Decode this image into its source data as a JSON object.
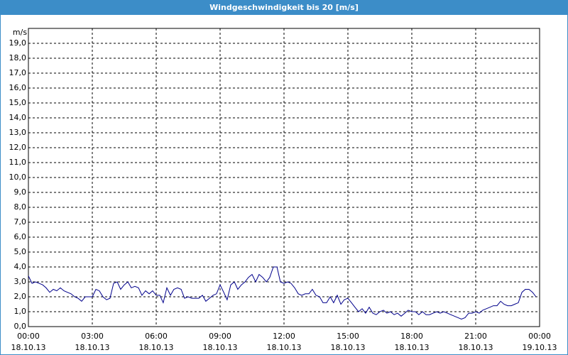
{
  "chart_data": {
    "type": "line",
    "title": "Windgeschwindigkeit bis 20 [m/s]",
    "ylabel": "m/s",
    "color": "#00008b",
    "grid": true,
    "xlim": [
      0,
      24
    ],
    "xticks": [
      {
        "value": 0,
        "label": "00:00"
      },
      {
        "value": 3,
        "label": "03:00"
      },
      {
        "value": 6,
        "label": "06:00"
      },
      {
        "value": 9,
        "label": "09:00"
      },
      {
        "value": 12,
        "label": "12:00"
      },
      {
        "value": 15,
        "label": "15:00"
      },
      {
        "value": 18,
        "label": "18:00"
      },
      {
        "value": 21,
        "label": "21:00"
      },
      {
        "value": 24,
        "label": "00:00"
      }
    ],
    "xtick_dates": [
      "18.10.13",
      "18.10.13",
      "18.10.13",
      "18.10.13",
      "18.10.13",
      "18.10.13",
      "18.10.13",
      "18.10.13",
      "19.10.13"
    ],
    "ylim": [
      0,
      20
    ],
    "yticks": [
      {
        "value": 0,
        "label": "0,0"
      },
      {
        "value": 1,
        "label": "1,0"
      },
      {
        "value": 2,
        "label": "2,0"
      },
      {
        "value": 3,
        "label": "3,0"
      },
      {
        "value": 4,
        "label": "4,0"
      },
      {
        "value": 5,
        "label": "5,0"
      },
      {
        "value": 6,
        "label": "6,0"
      },
      {
        "value": 7,
        "label": "7,0"
      },
      {
        "value": 8,
        "label": "8,0"
      },
      {
        "value": 9,
        "label": "9,0"
      },
      {
        "value": 10,
        "label": "10,0"
      },
      {
        "value": 11,
        "label": "11,0"
      },
      {
        "value": 12,
        "label": "12,0"
      },
      {
        "value": 13,
        "label": "13,0"
      },
      {
        "value": 14,
        "label": "14,0"
      },
      {
        "value": 15,
        "label": "15,0"
      },
      {
        "value": 16,
        "label": "16,0"
      },
      {
        "value": 17,
        "label": "17,0"
      },
      {
        "value": 18,
        "label": "18,0"
      },
      {
        "value": 19,
        "label": "19,0"
      }
    ],
    "x": [
      0,
      0.17,
      0.33,
      0.5,
      0.67,
      0.83,
      1,
      1.17,
      1.33,
      1.5,
      1.67,
      1.83,
      2,
      2.17,
      2.33,
      2.5,
      2.67,
      2.83,
      3,
      3.17,
      3.33,
      3.5,
      3.67,
      3.83,
      4,
      4.17,
      4.33,
      4.5,
      4.67,
      4.83,
      5,
      5.17,
      5.33,
      5.5,
      5.67,
      5.83,
      6,
      6.17,
      6.33,
      6.5,
      6.67,
      6.83,
      7,
      7.17,
      7.33,
      7.5,
      7.67,
      7.83,
      8,
      8.17,
      8.33,
      8.5,
      8.67,
      8.83,
      9,
      9.17,
      9.33,
      9.5,
      9.67,
      9.83,
      10,
      10.17,
      10.33,
      10.5,
      10.67,
      10.83,
      11,
      11.17,
      11.33,
      11.5,
      11.67,
      11.83,
      12,
      12.17,
      12.33,
      12.5,
      12.67,
      12.83,
      13,
      13.17,
      13.33,
      13.5,
      13.67,
      13.83,
      14,
      14.17,
      14.33,
      14.5,
      14.67,
      14.83,
      15,
      15.17,
      15.33,
      15.5,
      15.67,
      15.83,
      16,
      16.17,
      16.33,
      16.5,
      16.67,
      16.83,
      17,
      17.17,
      17.33,
      17.5,
      17.67,
      17.83,
      18,
      18.17,
      18.33,
      18.5,
      18.67,
      18.83,
      19,
      19.17,
      19.33,
      19.5,
      19.67,
      19.83,
      20,
      20.17,
      20.33,
      20.5,
      20.67,
      20.83,
      21,
      21.17,
      21.33,
      21.5,
      21.67,
      21.83,
      22,
      22.17,
      22.33,
      22.5,
      22.67,
      22.83,
      23,
      23.17,
      23.33,
      23.5,
      23.67,
      23.83
    ],
    "values": [
      3.4,
      2.9,
      3.0,
      2.9,
      2.8,
      2.6,
      2.3,
      2.5,
      2.4,
      2.6,
      2.4,
      2.3,
      2.2,
      2.0,
      1.9,
      1.7,
      2.0,
      2.0,
      2.0,
      2.5,
      2.4,
      2.0,
      1.8,
      1.9,
      2.9,
      3.0,
      2.5,
      2.8,
      3.0,
      2.6,
      2.7,
      2.6,
      2.1,
      2.4,
      2.2,
      2.4,
      2.1,
      2.1,
      1.6,
      2.6,
      2.1,
      2.5,
      2.6,
      2.5,
      1.9,
      2.0,
      1.9,
      1.9,
      1.9,
      2.1,
      1.7,
      1.9,
      2.1,
      2.2,
      2.8,
      2.3,
      1.8,
      2.8,
      3.0,
      2.5,
      2.8,
      3.0,
      3.3,
      3.5,
      3.0,
      3.5,
      3.3,
      3.0,
      3.3,
      4.0,
      4.0,
      3.0,
      2.9,
      3.0,
      2.9,
      2.6,
      2.2,
      2.1,
      2.2,
      2.2,
      2.5,
      2.1,
      2.0,
      1.6,
      1.6,
      2.0,
      1.6,
      2.1,
      1.5,
      1.8,
      1.9,
      1.6,
      1.3,
      1.0,
      1.2,
      0.9,
      1.3,
      0.9,
      0.8,
      1.0,
      1.1,
      0.9,
      1.0,
      0.8,
      0.9,
      0.7,
      0.9,
      1.1,
      1.0,
      1.0,
      0.8,
      1.0,
      0.8,
      0.8,
      0.9,
      1.0,
      0.9,
      1.0,
      0.9,
      0.8,
      0.7,
      0.6,
      0.5,
      0.6,
      0.9,
      0.9,
      1.0,
      0.9,
      1.1,
      1.2,
      1.3,
      1.4,
      1.4,
      1.7,
      1.5,
      1.4,
      1.4,
      1.5,
      1.6,
      2.3,
      2.5,
      2.5,
      2.3,
      2.0
    ]
  }
}
